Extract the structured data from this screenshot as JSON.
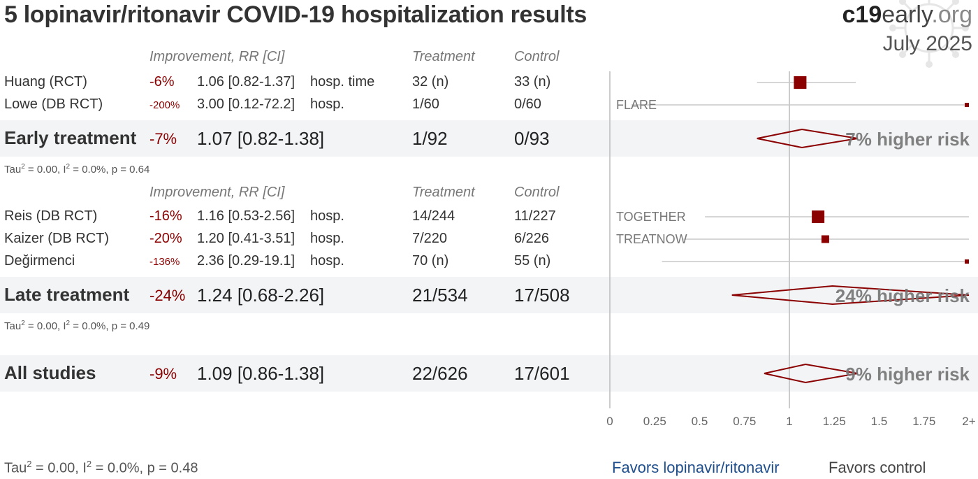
{
  "title": "5 lopinavir/ritonavir COVID-19 hospitalization results",
  "brand": {
    "bold": "c19",
    "rest": "early",
    "tld": ".org"
  },
  "date": "July 2025",
  "columns": {
    "improvement": "Improvement, RR [CI]",
    "treatment": "Treatment",
    "control": "Control"
  },
  "colors": {
    "accent": "#8b0000",
    "favors_left": "#1f4e8c",
    "band": "#f2f4f6",
    "axis": "#bbbbbb"
  },
  "groups": {
    "early": {
      "studies": [
        {
          "name": "Huang (RCT)",
          "improvement": "-6%",
          "rr": "1.06 [0.82-1.37]",
          "outcome": "hosp. time",
          "treatment": "32 (n)",
          "control": "33 (n)",
          "trial": "",
          "est": 1.06,
          "lo": 0.82,
          "hi": 1.37,
          "marker": "large"
        },
        {
          "name": "Lowe (DB RCT)",
          "improvement": "-200%",
          "rr": "3.00 [0.12-72.2]",
          "outcome": "hosp.",
          "treatment": "1/60",
          "control": "0/60",
          "trial": "FLARE",
          "est": 3.0,
          "lo": 0.12,
          "hi": 72.2,
          "marker": "tiny"
        }
      ],
      "summary": {
        "label": "Early treatment",
        "improvement": "-7%",
        "rr": "1.07 [0.82-1.38]",
        "treatment": "1/92",
        "control": "0/93",
        "est": 1.07,
        "lo": 0.82,
        "hi": 1.38,
        "risk_label": "7% higher risk"
      },
      "stats": {
        "tau": "Tau",
        "rest": " = 0.00, I",
        "end": " = 0.0%, p = 0.64"
      }
    },
    "late": {
      "studies": [
        {
          "name": "Reis (DB RCT)",
          "improvement": "-16%",
          "rr": "1.16 [0.53-2.56]",
          "outcome": "hosp.",
          "treatment": "14/244",
          "control": "11/227",
          "trial": "TOGETHER",
          "est": 1.16,
          "lo": 0.53,
          "hi": 2.56,
          "marker": "large"
        },
        {
          "name": "Kaizer (DB RCT)",
          "improvement": "-20%",
          "rr": "1.20 [0.41-3.51]",
          "outcome": "hosp.",
          "treatment": "7/220",
          "control": "6/226",
          "trial": "TREATNOW",
          "est": 1.2,
          "lo": 0.41,
          "hi": 3.51,
          "marker": "small"
        },
        {
          "name": "Değirmenci",
          "improvement": "-136%",
          "rr": "2.36 [0.29-19.1]",
          "outcome": "hosp.",
          "treatment": "70 (n)",
          "control": "55 (n)",
          "trial": "",
          "est": 2.36,
          "lo": 0.29,
          "hi": 19.1,
          "marker": "tiny"
        }
      ],
      "summary": {
        "label": "Late treatment",
        "improvement": "-24%",
        "rr": "1.24 [0.68-2.26]",
        "treatment": "21/534",
        "control": "17/508",
        "est": 1.24,
        "lo": 0.68,
        "hi": 2.26,
        "risk_label": "24% higher risk"
      },
      "stats": {
        "tau": "Tau",
        "rest": " = 0.00, I",
        "end": " = 0.0%, p = 0.49"
      }
    }
  },
  "all": {
    "label": "All studies",
    "improvement": "-9%",
    "rr": "1.09 [0.86-1.38]",
    "treatment": "22/626",
    "control": "17/601",
    "est": 1.09,
    "lo": 0.86,
    "hi": 1.38,
    "risk_label": "9% higher risk"
  },
  "overall_stats": {
    "tau": "Tau",
    "rest": " = 0.00, I",
    "end": " = 0.0%, p = 0.48"
  },
  "favors": {
    "left": "Favors lopinavir/ritonavir",
    "right": "Favors control"
  },
  "chart_data": {
    "type": "forest",
    "x_axis": {
      "ticks": [
        0,
        0.25,
        0.5,
        0.75,
        1,
        1.25,
        1.5,
        1.75,
        2
      ],
      "tick_labels": [
        "0",
        "0.25",
        "0.5",
        "0.75",
        "1",
        "1.25",
        "1.5",
        "1.75",
        "2+"
      ],
      "range": [
        0,
        2
      ],
      "reference": 1
    },
    "studies": [
      {
        "name": "Huang (RCT)",
        "rr": 1.06,
        "ci": [
          0.82,
          1.37
        ]
      },
      {
        "name": "Lowe (DB RCT)",
        "rr": 3.0,
        "ci": [
          0.12,
          72.2
        ]
      },
      {
        "name": "Reis (DB RCT)",
        "rr": 1.16,
        "ci": [
          0.53,
          2.56
        ]
      },
      {
        "name": "Kaizer (DB RCT)",
        "rr": 1.2,
        "ci": [
          0.41,
          3.51
        ]
      },
      {
        "name": "Değirmenci",
        "rr": 2.36,
        "ci": [
          0.29,
          19.1
        ]
      }
    ],
    "summaries": [
      {
        "name": "Early treatment",
        "rr": 1.07,
        "ci": [
          0.82,
          1.38
        ]
      },
      {
        "name": "Late treatment",
        "rr": 1.24,
        "ci": [
          0.68,
          2.26
        ]
      },
      {
        "name": "All studies",
        "rr": 1.09,
        "ci": [
          0.86,
          1.38
        ]
      }
    ]
  }
}
